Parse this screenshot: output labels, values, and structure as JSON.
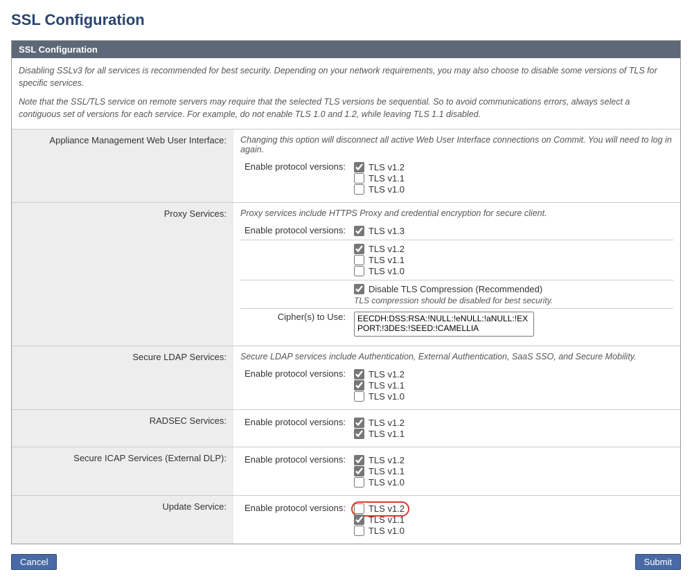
{
  "page_title": "SSL Configuration",
  "panel_header": "SSL Configuration",
  "intro": {
    "p1": "Disabling SSLv3 for all services is recommended for best security. Depending on your network requirements, you may also choose to disable some versions of TLS for specific services.",
    "p2": "Note that the SSL/TLS service on remote servers may require that the selected TLS versions be sequential. So to avoid communications errors, always select a contiguous set of versions for each service. For example, do not enable TLS 1.0 and 1.2, while leaving TLS 1.1 disabled."
  },
  "labels": {
    "enable_versions": "Enable protocol versions:",
    "ciphers": "Cipher(s) to Use:"
  },
  "sections": {
    "appliance": {
      "label": "Appliance Management Web User Interface:",
      "note": "Changing this option will disconnect all active Web User Interface connections on Commit. You will need to log in again.",
      "versions": [
        {
          "label": "TLS v1.2",
          "checked": true
        },
        {
          "label": "TLS v1.1",
          "checked": false
        },
        {
          "label": "TLS v1.0",
          "checked": false
        }
      ]
    },
    "proxy": {
      "label": "Proxy Services:",
      "note": "Proxy services include HTTPS Proxy and credential encryption for secure client.",
      "versions_a": [
        {
          "label": "TLS v1.3",
          "checked": true
        }
      ],
      "versions_b": [
        {
          "label": "TLS v1.2",
          "checked": true
        },
        {
          "label": "TLS v1.1",
          "checked": false
        },
        {
          "label": "TLS v1.0",
          "checked": false
        }
      ],
      "compression": {
        "label": "Disable TLS Compression (Recommended)",
        "checked": true
      },
      "compression_note": "TLS compression should be disabled for best security.",
      "cipher_value": "EECDH:DSS:RSA:!NULL:!eNULL:!aNULL:!EXPORT:!3DES:!SEED:!CAMELLIA"
    },
    "ldap": {
      "label": "Secure LDAP Services:",
      "note": "Secure LDAP services include Authentication, External Authentication, SaaS SSO, and Secure Mobility.",
      "versions": [
        {
          "label": "TLS v1.2",
          "checked": true
        },
        {
          "label": "TLS v1.1",
          "checked": true
        },
        {
          "label": "TLS v1.0",
          "checked": false
        }
      ]
    },
    "radsec": {
      "label": "RADSEC Services:",
      "versions": [
        {
          "label": "TLS v1.2",
          "checked": true
        },
        {
          "label": "TLS v1.1",
          "checked": true
        }
      ]
    },
    "icap": {
      "label": "Secure ICAP Services (External DLP):",
      "versions": [
        {
          "label": "TLS v1.2",
          "checked": true
        },
        {
          "label": "TLS v1.1",
          "checked": true
        },
        {
          "label": "TLS v1.0",
          "checked": false
        }
      ]
    },
    "update": {
      "label": "Update Service:",
      "versions": [
        {
          "label": "TLS v1.2",
          "checked": false,
          "highlight": true
        },
        {
          "label": "TLS v1.1",
          "checked": true
        },
        {
          "label": "TLS v1.0",
          "checked": false
        }
      ]
    }
  },
  "buttons": {
    "cancel": "Cancel",
    "submit": "Submit"
  }
}
